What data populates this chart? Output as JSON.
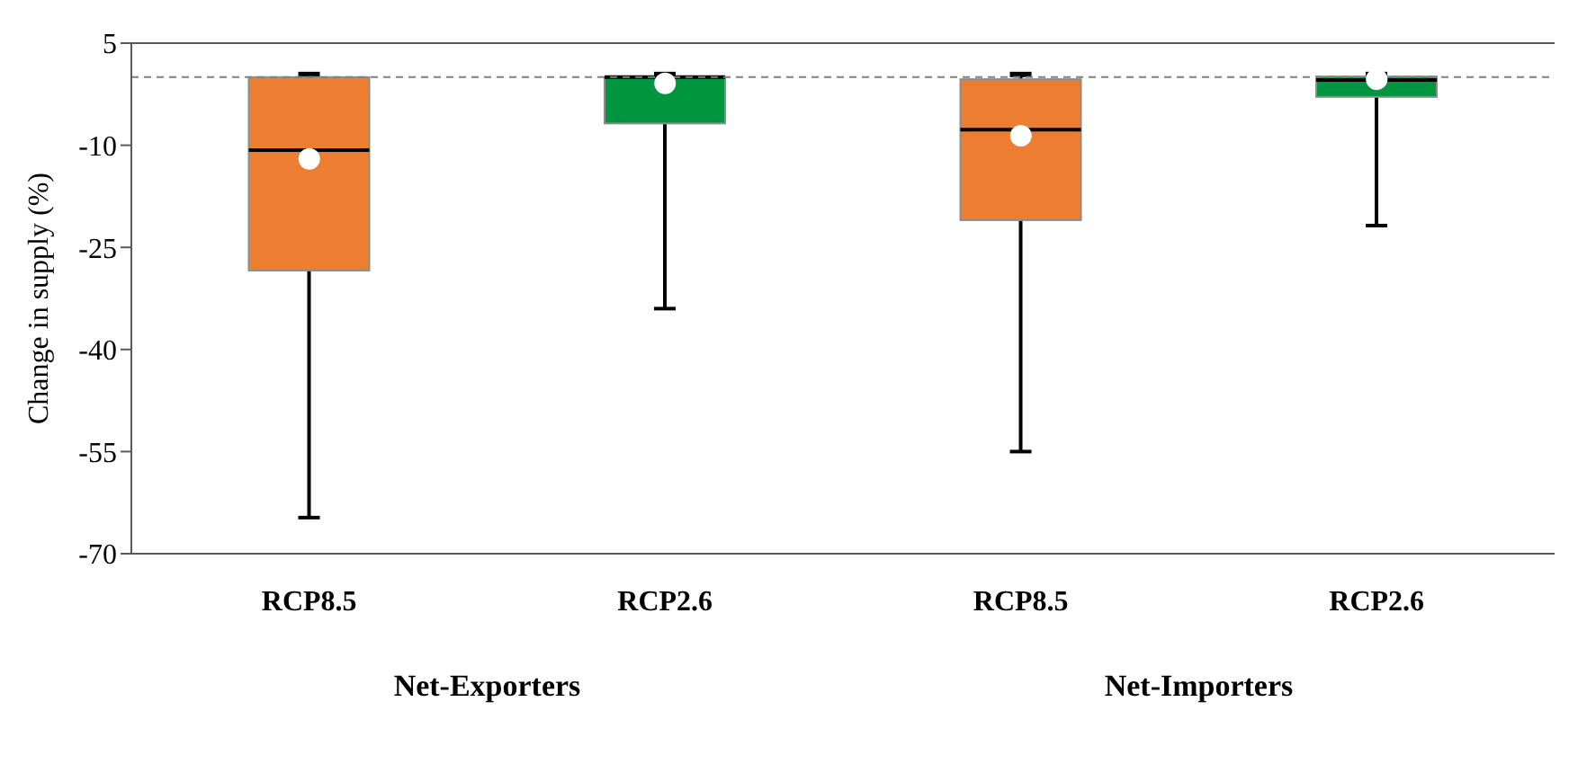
{
  "chart_data": {
    "type": "box",
    "ylabel": "Change in supply (%)",
    "categories": [
      "RCP8.5",
      "RCP2.6",
      "RCP8.5",
      "RCP2.6"
    ],
    "colors": [
      "#ed7d31",
      "#00963f",
      "#ed7d31",
      "#00963f"
    ],
    "boxes": [
      {
        "low": -64.7,
        "q1": -28.4,
        "median": -10.7,
        "q3": 0,
        "high": 0.4,
        "mean": -12
      },
      {
        "low": -34,
        "q1": -6.8,
        "median": 0,
        "q3": 0,
        "high": 0.4,
        "mean": -0.9
      },
      {
        "low": -55,
        "q1": -21,
        "median": -7.7,
        "q3": -0.3,
        "high": 0.4,
        "mean": -8.6
      },
      {
        "low": -21.8,
        "q1": -2.9,
        "median": -0.4,
        "q3": 0.1,
        "high": 0.4,
        "mean": -0.3
      }
    ],
    "ylim": [
      -70,
      5
    ],
    "yticks": [
      5,
      -10,
      -25,
      -40,
      -55,
      -70
    ],
    "ref_lines": [
      {
        "axis": "y",
        "value": 0,
        "color": "#808080",
        "line_style": "dashed"
      }
    ],
    "annotations": [
      "Net-Exporters",
      "Net-Importers"
    ],
    "legend": false
  }
}
